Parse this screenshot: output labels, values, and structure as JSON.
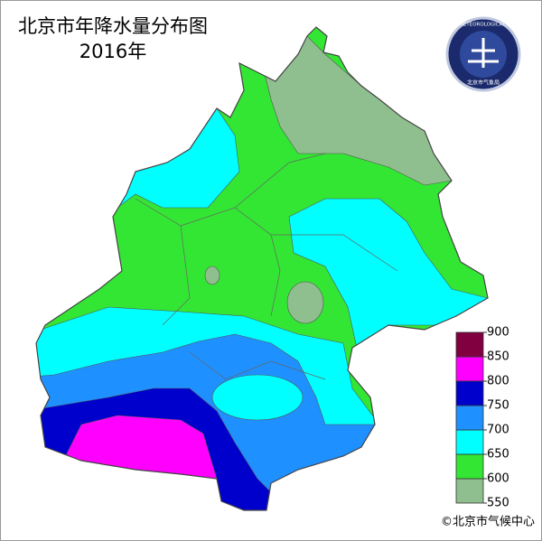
{
  "title": "北京市年降水量分布图",
  "subtitle": "2016年",
  "logo": {
    "text": "BEIJING METEOROLOGICAL BUREAU",
    "cn": "北京市气象局"
  },
  "legend": {
    "ticks": [
      550,
      600,
      650,
      700,
      750,
      800,
      850,
      900
    ],
    "colors": [
      "#8fbf8f",
      "#33e633",
      "#00ffff",
      "#1e90ff",
      "#0000cd",
      "#ff00ff",
      "#800040"
    ]
  },
  "credit": "©北京市气候中心"
}
